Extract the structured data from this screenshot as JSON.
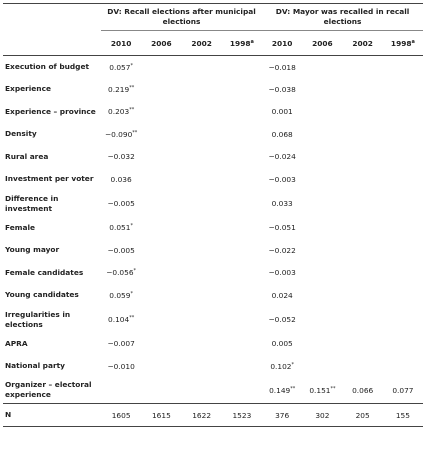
{
  "table": {
    "groups": [
      "DV: Recall elections after municipal elections",
      "DV: Mayor was recalled in recall elections"
    ],
    "years": [
      {
        "text": "2010"
      },
      {
        "text": "2006"
      },
      {
        "text": "2002"
      },
      {
        "text": "1998",
        "note": "a"
      },
      {
        "text": "2010"
      },
      {
        "text": "2006"
      },
      {
        "text": "2002"
      },
      {
        "text": "1998",
        "note": "a"
      }
    ],
    "rows": [
      {
        "label": "Execution of budget",
        "cells": [
          {
            "value": "0.057",
            "sig": "*"
          },
          null,
          null,
          null,
          {
            "value": "−0.018"
          },
          null,
          null,
          null
        ]
      },
      {
        "label": "Experience",
        "cells": [
          {
            "value": "0.219",
            "sig": "**"
          },
          null,
          null,
          null,
          {
            "value": "−0.038"
          },
          null,
          null,
          null
        ]
      },
      {
        "label": "Experience – province",
        "cells": [
          {
            "value": "0.203",
            "sig": "**"
          },
          null,
          null,
          null,
          {
            "value": "0.001"
          },
          null,
          null,
          null
        ]
      },
      {
        "label": "Density",
        "cells": [
          {
            "value": "−0.090",
            "sig": "**"
          },
          null,
          null,
          null,
          {
            "value": "0.068"
          },
          null,
          null,
          null
        ]
      },
      {
        "label": "Rural area",
        "cells": [
          {
            "value": "−0.032"
          },
          null,
          null,
          null,
          {
            "value": "−0.024"
          },
          null,
          null,
          null
        ]
      },
      {
        "label": "Investment per voter",
        "cells": [
          {
            "value": "0.036"
          },
          null,
          null,
          null,
          {
            "value": "−0.003"
          },
          null,
          null,
          null
        ]
      },
      {
        "label": "Difference in investment",
        "cells": [
          {
            "value": "−0.005"
          },
          null,
          null,
          null,
          {
            "value": "0.033"
          },
          null,
          null,
          null
        ]
      },
      {
        "label": "Female",
        "cells": [
          {
            "value": "0.051",
            "sig": "*"
          },
          null,
          null,
          null,
          {
            "value": "−0.051"
          },
          null,
          null,
          null
        ]
      },
      {
        "label": "Young mayor",
        "cells": [
          {
            "value": "−0.005"
          },
          null,
          null,
          null,
          {
            "value": "−0.022"
          },
          null,
          null,
          null
        ]
      },
      {
        "label": "Female candidates",
        "cells": [
          {
            "value": "−0.056",
            "sig": "*"
          },
          null,
          null,
          null,
          {
            "value": "−0.003"
          },
          null,
          null,
          null
        ]
      },
      {
        "label": "Young candidates",
        "cells": [
          {
            "value": "0.059",
            "sig": "*"
          },
          null,
          null,
          null,
          {
            "value": "0.024"
          },
          null,
          null,
          null
        ]
      },
      {
        "label": "Irregularities in elections",
        "cells": [
          {
            "value": "0.104",
            "sig": "**"
          },
          null,
          null,
          null,
          {
            "value": "−0.052"
          },
          null,
          null,
          null
        ]
      },
      {
        "label": "APRA",
        "cells": [
          {
            "value": "−0.007"
          },
          null,
          null,
          null,
          {
            "value": "0.005"
          },
          null,
          null,
          null
        ]
      },
      {
        "label": "National party",
        "cells": [
          {
            "value": "−0.010"
          },
          null,
          null,
          null,
          {
            "value": "0.102",
            "sig": "*"
          },
          null,
          null,
          null
        ]
      },
      {
        "label": "Organizer – electoral experience",
        "cells": [
          null,
          null,
          null,
          null,
          {
            "value": "0.149",
            "sig": "**"
          },
          {
            "value": "0.151",
            "sig": "**"
          },
          {
            "value": "0.066"
          },
          {
            "value": "0.077"
          }
        ]
      },
      {
        "label": "N",
        "cells": [
          {
            "value": "1605"
          },
          {
            "value": "1615"
          },
          {
            "value": "1622"
          },
          {
            "value": "1523"
          },
          {
            "value": "376"
          },
          {
            "value": "302"
          },
          {
            "value": "205"
          },
          {
            "value": "155"
          }
        ]
      }
    ]
  }
}
